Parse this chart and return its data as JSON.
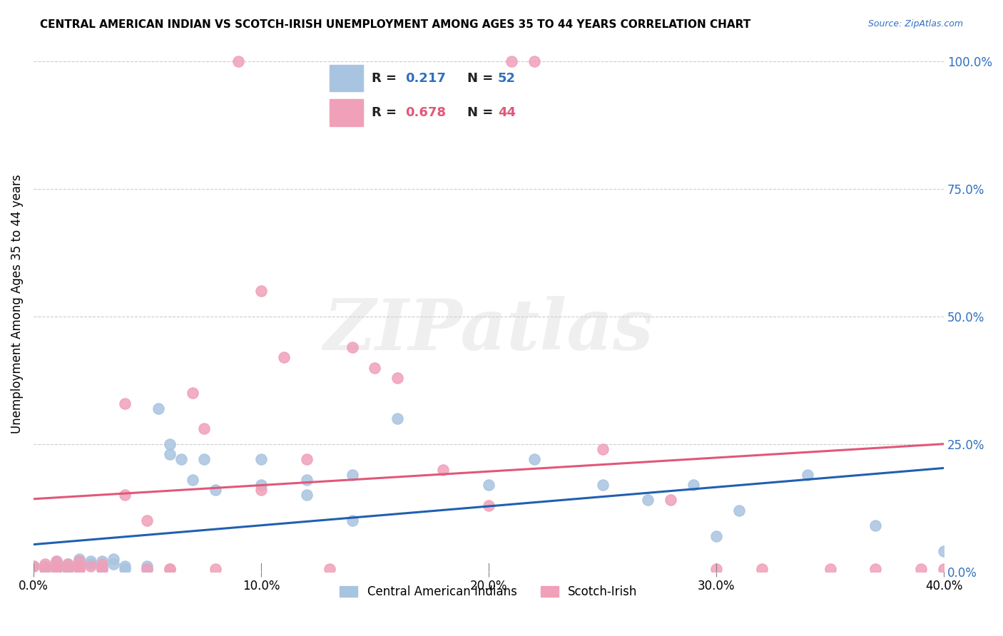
{
  "title": "CENTRAL AMERICAN INDIAN VS SCOTCH-IRISH UNEMPLOYMENT AMONG AGES 35 TO 44 YEARS CORRELATION CHART",
  "source": "Source: ZipAtlas.com",
  "ylabel": "Unemployment Among Ages 35 to 44 years",
  "xlabel_ticks": [
    "0.0%",
    "10.0%",
    "20.0%",
    "30.0%",
    "40.0%"
  ],
  "xlabel_vals": [
    0.0,
    0.1,
    0.2,
    0.3,
    0.4
  ],
  "ylabel_ticks": [
    "0.0%",
    "25.0%",
    "50.0%",
    "75.0%",
    "100.0%"
  ],
  "ylabel_vals": [
    0.0,
    0.25,
    0.5,
    0.75,
    1.0
  ],
  "xlim": [
    0.0,
    0.4
  ],
  "ylim": [
    0.0,
    1.05
  ],
  "blue_R": 0.217,
  "blue_N": 52,
  "pink_R": 0.678,
  "pink_N": 44,
  "blue_color": "#a8c4e0",
  "pink_color": "#f0a0b8",
  "blue_line_color": "#2060b0",
  "pink_line_color": "#e05878",
  "legend_blue_label": "Central American Indians",
  "legend_pink_label": "Scotch-Irish",
  "watermark": "ZIPatlas",
  "blue_x": [
    0.0,
    0.005,
    0.005,
    0.01,
    0.01,
    0.01,
    0.01,
    0.01,
    0.015,
    0.015,
    0.015,
    0.015,
    0.02,
    0.02,
    0.02,
    0.02,
    0.02,
    0.025,
    0.025,
    0.03,
    0.03,
    0.03,
    0.035,
    0.035,
    0.04,
    0.04,
    0.05,
    0.05,
    0.055,
    0.06,
    0.06,
    0.065,
    0.07,
    0.075,
    0.08,
    0.1,
    0.1,
    0.12,
    0.12,
    0.14,
    0.14,
    0.16,
    0.2,
    0.22,
    0.25,
    0.27,
    0.29,
    0.3,
    0.31,
    0.34,
    0.37,
    0.4
  ],
  "blue_y": [
    0.01,
    0.005,
    0.01,
    0.005,
    0.01,
    0.015,
    0.02,
    0.005,
    0.005,
    0.01,
    0.015,
    0.005,
    0.015,
    0.02,
    0.025,
    0.01,
    0.005,
    0.02,
    0.015,
    0.01,
    0.005,
    0.02,
    0.015,
    0.025,
    0.01,
    0.005,
    0.005,
    0.01,
    0.32,
    0.25,
    0.23,
    0.22,
    0.18,
    0.22,
    0.16,
    0.22,
    0.17,
    0.18,
    0.15,
    0.19,
    0.1,
    0.3,
    0.17,
    0.22,
    0.17,
    0.14,
    0.17,
    0.07,
    0.12,
    0.19,
    0.09,
    0.04
  ],
  "pink_x": [
    0.0,
    0.005,
    0.005,
    0.01,
    0.01,
    0.01,
    0.015,
    0.015,
    0.02,
    0.02,
    0.02,
    0.025,
    0.03,
    0.03,
    0.04,
    0.04,
    0.05,
    0.05,
    0.06,
    0.06,
    0.07,
    0.075,
    0.08,
    0.09,
    0.1,
    0.1,
    0.11,
    0.12,
    0.13,
    0.14,
    0.15,
    0.16,
    0.18,
    0.2,
    0.21,
    0.22,
    0.25,
    0.28,
    0.3,
    0.32,
    0.35,
    0.37,
    0.39,
    0.4
  ],
  "pink_y": [
    0.01,
    0.005,
    0.015,
    0.01,
    0.005,
    0.02,
    0.005,
    0.015,
    0.01,
    0.005,
    0.02,
    0.01,
    0.015,
    0.005,
    0.33,
    0.15,
    0.005,
    0.1,
    0.005,
    0.005,
    0.35,
    0.28,
    0.005,
    1.0,
    0.16,
    0.55,
    0.42,
    0.22,
    0.005,
    0.44,
    0.4,
    0.38,
    0.2,
    0.13,
    1.0,
    1.0,
    0.24,
    0.14,
    0.005,
    0.005,
    0.005,
    0.005,
    0.005,
    0.005
  ]
}
